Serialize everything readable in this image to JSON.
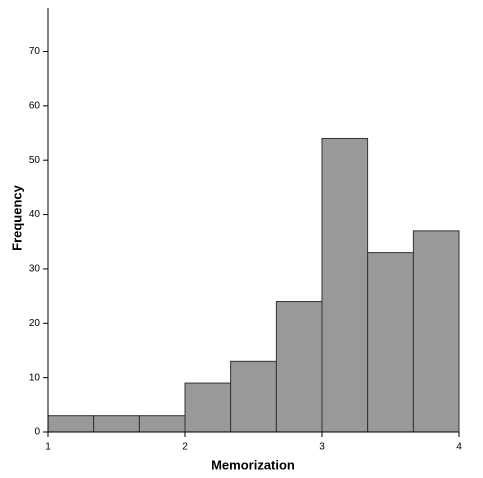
{
  "chart_data": {
    "type": "histogram",
    "x_label": "Memorization",
    "y_label": "Frequency",
    "bins": [
      1,
      1.333,
      1.667,
      2,
      2.333,
      2.667,
      3,
      3.333,
      3.667,
      4
    ],
    "values": [
      3,
      3,
      3,
      9,
      13,
      24,
      54,
      33,
      37
    ],
    "color": "#999999",
    "xlim": [
      1,
      4
    ],
    "xticks": [
      1,
      2,
      3,
      4
    ],
    "ylim": [
      0,
      78
    ],
    "yticks": [
      0,
      10,
      20,
      30,
      40,
      50,
      60,
      70
    ]
  }
}
